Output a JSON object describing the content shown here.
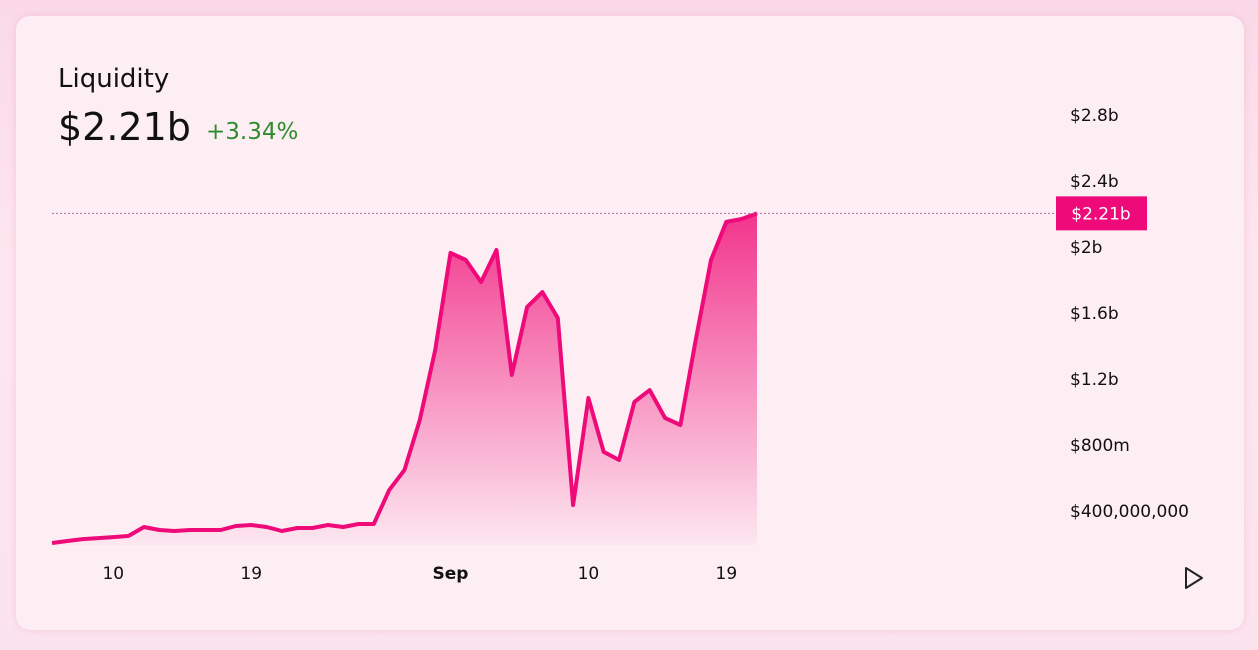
{
  "header": {
    "title": "Liquidity",
    "value": "$2.21b",
    "change": "+3.34%"
  },
  "chart_data": {
    "type": "area",
    "x": [
      "Aug 6",
      "Aug 7",
      "Aug 8",
      "Aug 9",
      "Aug 10",
      "Aug 11",
      "Aug 12",
      "Aug 13",
      "Aug 14",
      "Aug 15",
      "Aug 16",
      "Aug 17",
      "Aug 18",
      "Aug 19",
      "Aug 20",
      "Aug 21",
      "Aug 22",
      "Aug 23",
      "Aug 24",
      "Aug 25",
      "Aug 26",
      "Aug 27",
      "Aug 28",
      "Aug 29",
      "Aug 30",
      "Aug 31",
      "Sep 1",
      "Sep 2",
      "Sep 3",
      "Sep 4",
      "Sep 5",
      "Sep 6",
      "Sep 7",
      "Sep 8",
      "Sep 9",
      "Sep 10",
      "Sep 11",
      "Sep 12",
      "Sep 13",
      "Sep 14",
      "Sep 15",
      "Sep 16",
      "Sep 17",
      "Sep 18",
      "Sep 19",
      "Sep 20",
      "Sep 21"
    ],
    "series": [
      {
        "name": "Liquidity",
        "color": "#ee0a78",
        "values": [
          212000000,
          224000000,
          236000000,
          242000000,
          248000000,
          255000000,
          309000000,
          291000000,
          285000000,
          291000000,
          291000000,
          291000000,
          315000000,
          321000000,
          309000000,
          285000000,
          303000000,
          303000000,
          321000000,
          309000000,
          327000000,
          327000000,
          533000000,
          655000000,
          958000000,
          1382000000,
          1970000000,
          1927000000,
          1794000000,
          1988000000,
          1230000000,
          1642000000,
          1733000000,
          1576000000,
          442000000,
          1091000000,
          764000000,
          715000000,
          1067000000,
          1139000000,
          970000000,
          927000000,
          1442000000,
          1927000000,
          2158000000,
          2176000000,
          2210000000
        ],
        "current_label": "$2.21b"
      }
    ],
    "xticks": [
      {
        "value": "Aug 10",
        "label": "10"
      },
      {
        "value": "Aug 19",
        "label": "19"
      },
      {
        "value": "Sep 1",
        "label": "Sep"
      },
      {
        "value": "Sep 10",
        "label": "10"
      },
      {
        "value": "Sep 19",
        "label": "19"
      }
    ],
    "ylim": [
      200000000,
      3000000000
    ],
    "yticks": [
      {
        "value": 400000000,
        "label": "$400,000,000"
      },
      {
        "value": 800000000,
        "label": "$800m"
      },
      {
        "value": 1200000000,
        "label": "$1.2b"
      },
      {
        "value": 1600000000,
        "label": "$1.6b"
      },
      {
        "value": 2000000000,
        "label": "$2b"
      },
      {
        "value": 2400000000,
        "label": "$2.4b"
      },
      {
        "value": 2800000000,
        "label": "$2.8b"
      }
    ]
  }
}
